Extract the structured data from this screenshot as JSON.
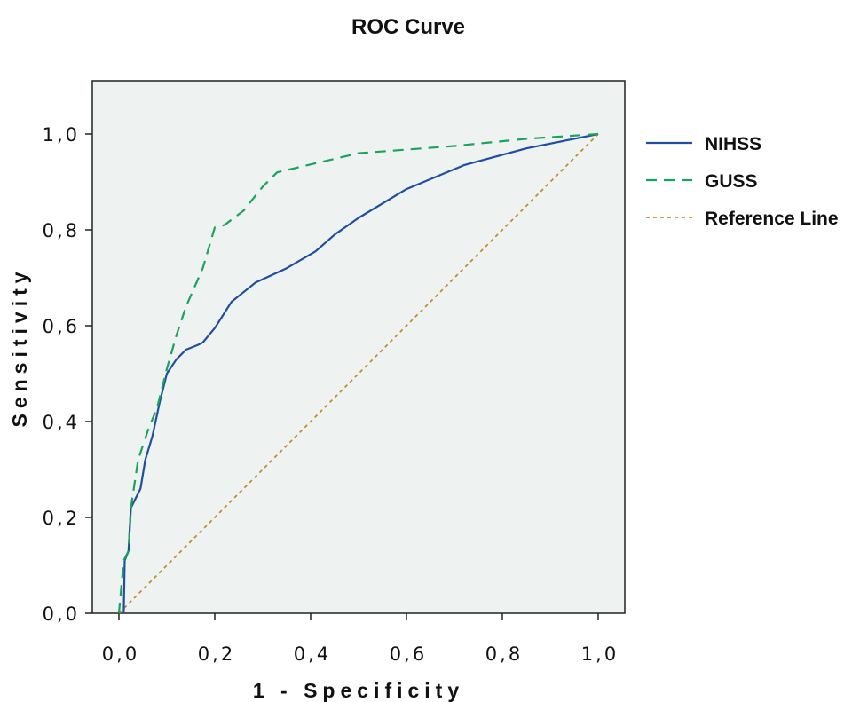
{
  "chart_data": {
    "type": "line",
    "title": "ROC Curve",
    "xlabel": "1 - Specificity",
    "ylabel": "Sensitivity",
    "xlim": [
      0,
      1
    ],
    "ylim": [
      0,
      1
    ],
    "x_ticks": [
      "0,0",
      "0,2",
      "0,4",
      "0,6",
      "0,8",
      "1,0"
    ],
    "y_ticks": [
      "0,0",
      "0,2",
      "0,4",
      "0,6",
      "0,8",
      "1,0"
    ],
    "grid": false,
    "legend_position": "right",
    "plot_background": "#eef3f1",
    "series": [
      {
        "name": "NIHSS",
        "color": "#1f4ea3",
        "style": "solid",
        "points": [
          [
            0.01,
            0.0
          ],
          [
            0.012,
            0.11
          ],
          [
            0.02,
            0.13
          ],
          [
            0.025,
            0.22
          ],
          [
            0.04,
            0.25
          ],
          [
            0.045,
            0.26
          ],
          [
            0.055,
            0.32
          ],
          [
            0.07,
            0.37
          ],
          [
            0.085,
            0.44
          ],
          [
            0.1,
            0.5
          ],
          [
            0.12,
            0.53
          ],
          [
            0.14,
            0.55
          ],
          [
            0.165,
            0.56
          ],
          [
            0.175,
            0.565
          ],
          [
            0.2,
            0.595
          ],
          [
            0.235,
            0.65
          ],
          [
            0.26,
            0.67
          ],
          [
            0.285,
            0.69
          ],
          [
            0.35,
            0.72
          ],
          [
            0.41,
            0.755
          ],
          [
            0.45,
            0.79
          ],
          [
            0.5,
            0.825
          ],
          [
            0.6,
            0.885
          ],
          [
            0.72,
            0.935
          ],
          [
            0.85,
            0.97
          ],
          [
            0.95,
            0.99
          ],
          [
            1.0,
            1.0
          ]
        ]
      },
      {
        "name": "GUSS",
        "color": "#1aa35a",
        "style": "dashed",
        "points": [
          [
            0.0,
            0.0
          ],
          [
            0.01,
            0.11
          ],
          [
            0.02,
            0.13
          ],
          [
            0.025,
            0.22
          ],
          [
            0.04,
            0.32
          ],
          [
            0.06,
            0.38
          ],
          [
            0.08,
            0.43
          ],
          [
            0.1,
            0.51
          ],
          [
            0.12,
            0.58
          ],
          [
            0.14,
            0.64
          ],
          [
            0.175,
            0.72
          ],
          [
            0.2,
            0.805
          ],
          [
            0.22,
            0.81
          ],
          [
            0.26,
            0.84
          ],
          [
            0.3,
            0.89
          ],
          [
            0.33,
            0.92
          ],
          [
            0.5,
            0.96
          ],
          [
            0.7,
            0.975
          ],
          [
            0.85,
            0.99
          ],
          [
            1.0,
            1.0
          ]
        ]
      },
      {
        "name": "Reference Line",
        "color": "#c98a2e",
        "style": "dotted",
        "points": [
          [
            0.0,
            0.0
          ],
          [
            1.0,
            1.0
          ]
        ]
      }
    ]
  }
}
